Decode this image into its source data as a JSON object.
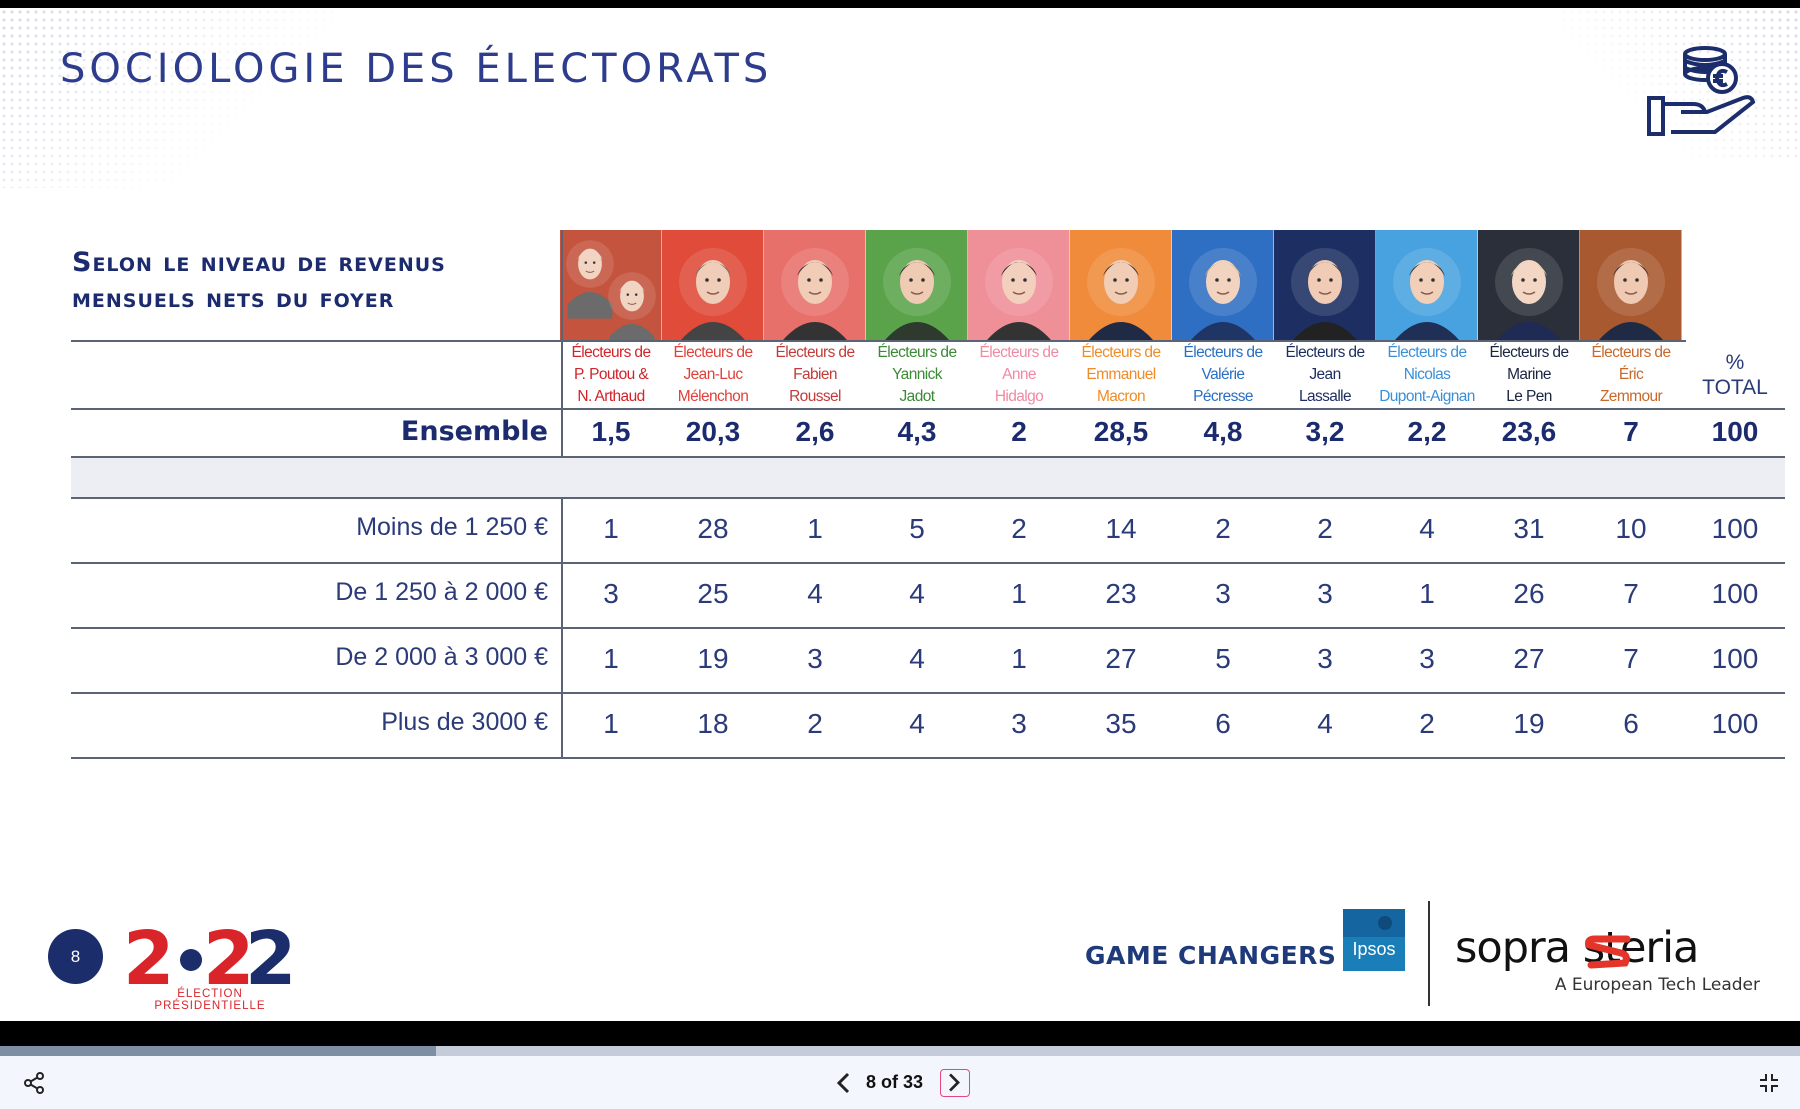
{
  "slide": {
    "title": "SOCIOLOGIE DES ÉLECTORATS",
    "table_title_line1": "Selon le niveau de revenus",
    "table_title_line2": "mensuels nets du foyer",
    "page_number": "8",
    "logo_2022_subtitle": "ÉLECTION PRÉSIDENTIELLE",
    "game_changers": "GAME CHANGERS",
    "ipsos": "Ipsos",
    "sopra_steria": "sopra steria",
    "sopra_tagline": "A European Tech Leader"
  },
  "table": {
    "total_label_line1": "%",
    "total_label_line2": "TOTAL",
    "columns": [
      {
        "line1": "Électeurs de",
        "line2": "P. Poutou &",
        "line3": "N. Arthaud",
        "color": "#d2232a",
        "bg": "#c4543e",
        "skin": "#f2d4c2",
        "hair": "#e6e6e6",
        "suit": "#6b6b6b"
      },
      {
        "line1": "Électeurs de",
        "line2": "Jean-Luc",
        "line3": "Mélenchon",
        "color": "#e0403a",
        "bg": "#e04b3a",
        "skin": "#f0cdb8",
        "hair": "#6e6e6e",
        "suit": "#444"
      },
      {
        "line1": "Électeurs de",
        "line2": "Fabien",
        "line3": "Roussel",
        "color": "#c23b3b",
        "bg": "#e8706a",
        "skin": "#f1cdb7",
        "hair": "#3a3030",
        "suit": "#333"
      },
      {
        "line1": "Électeurs de",
        "line2": "Yannick",
        "line3": "Jadot",
        "color": "#3b8a35",
        "bg": "#5aa34a",
        "skin": "#f0cbb3",
        "hair": "#3a3030",
        "suit": "#2d3a2d"
      },
      {
        "line1": "Électeurs de",
        "line2": "Anne",
        "line3": "Hidalgo",
        "color": "#f08aa2",
        "bg": "#ef8f98",
        "skin": "#f2d0bd",
        "hair": "#2b2222",
        "suit": "#333"
      },
      {
        "line1": "Électeurs de",
        "line2": "Emmanuel",
        "line3": "Macron",
        "color": "#ef8c2a",
        "bg": "#ef8b3a",
        "skin": "#f1cdb6",
        "hair": "#3a2f2a",
        "suit": "#1f2a44"
      },
      {
        "line1": "Électeurs de",
        "line2": "Valérie",
        "line3": "Pécresse",
        "color": "#2a6fc1",
        "bg": "#2f6fc3",
        "skin": "#f2d3bf",
        "hair": "#d9b978",
        "suit": "#1f3566"
      },
      {
        "line1": "Électeurs de",
        "line2": "Jean",
        "line3": "Lassalle",
        "color": "#1c2d5e",
        "bg": "#1d2f62",
        "skin": "#f0cbb5",
        "hair": "#4a4040",
        "suit": "#222"
      },
      {
        "line1": "Électeurs de",
        "line2": "Nicolas",
        "line3": "Dupont-Aignan",
        "color": "#3a8fd6",
        "bg": "#48a2e0",
        "skin": "#f1cfb9",
        "hair": "#3a3030",
        "suit": "#1f2f55"
      },
      {
        "line1": "Électeurs de",
        "line2": "Marine",
        "line3": "Le Pen",
        "color": "#1a2540",
        "bg": "#2a2f3a",
        "skin": "#f3d6c4",
        "hair": "#e6d3a8",
        "suit": "#1f2a55"
      },
      {
        "line1": "Électeurs de",
        "line2": "Éric",
        "line3": "Zemmour",
        "color": "#c8682a",
        "bg": "#a8592f",
        "skin": "#efc9b1",
        "hair": "#3a3030",
        "suit": "#1f2a44"
      }
    ],
    "ensemble": {
      "label": "Ensemble",
      "values": [
        "1,5",
        "20,3",
        "2,6",
        "4,3",
        "2",
        "28,5",
        "4,8",
        "3,2",
        "2,2",
        "23,6",
        "7"
      ],
      "total": "100"
    },
    "rows": [
      {
        "label": "Moins de 1 250 €",
        "values": [
          "1",
          "28",
          "1",
          "5",
          "2",
          "14",
          "2",
          "2",
          "4",
          "31",
          "10"
        ],
        "total": "100"
      },
      {
        "label": "De 1 250 à 2 000 €",
        "values": [
          "3",
          "25",
          "4",
          "4",
          "1",
          "23",
          "3",
          "3",
          "1",
          "26",
          "7"
        ],
        "total": "100"
      },
      {
        "label": "De 2 000 à 3 000 €",
        "values": [
          "1",
          "19",
          "3",
          "4",
          "1",
          "27",
          "5",
          "3",
          "3",
          "27",
          "7"
        ],
        "total": "100"
      },
      {
        "label": "Plus de 3000 €",
        "values": [
          "1",
          "18",
          "2",
          "4",
          "3",
          "35",
          "6",
          "4",
          "2",
          "19",
          "6"
        ],
        "total": "100"
      }
    ]
  },
  "viewer": {
    "page_counter": "8 of 33",
    "progress_fraction": 0.242
  },
  "icons": {
    "share": "share-icon",
    "prev": "chevron-left-icon",
    "next": "chevron-right-icon",
    "collapse": "collapse-icon",
    "money": "money-hand-icon"
  }
}
